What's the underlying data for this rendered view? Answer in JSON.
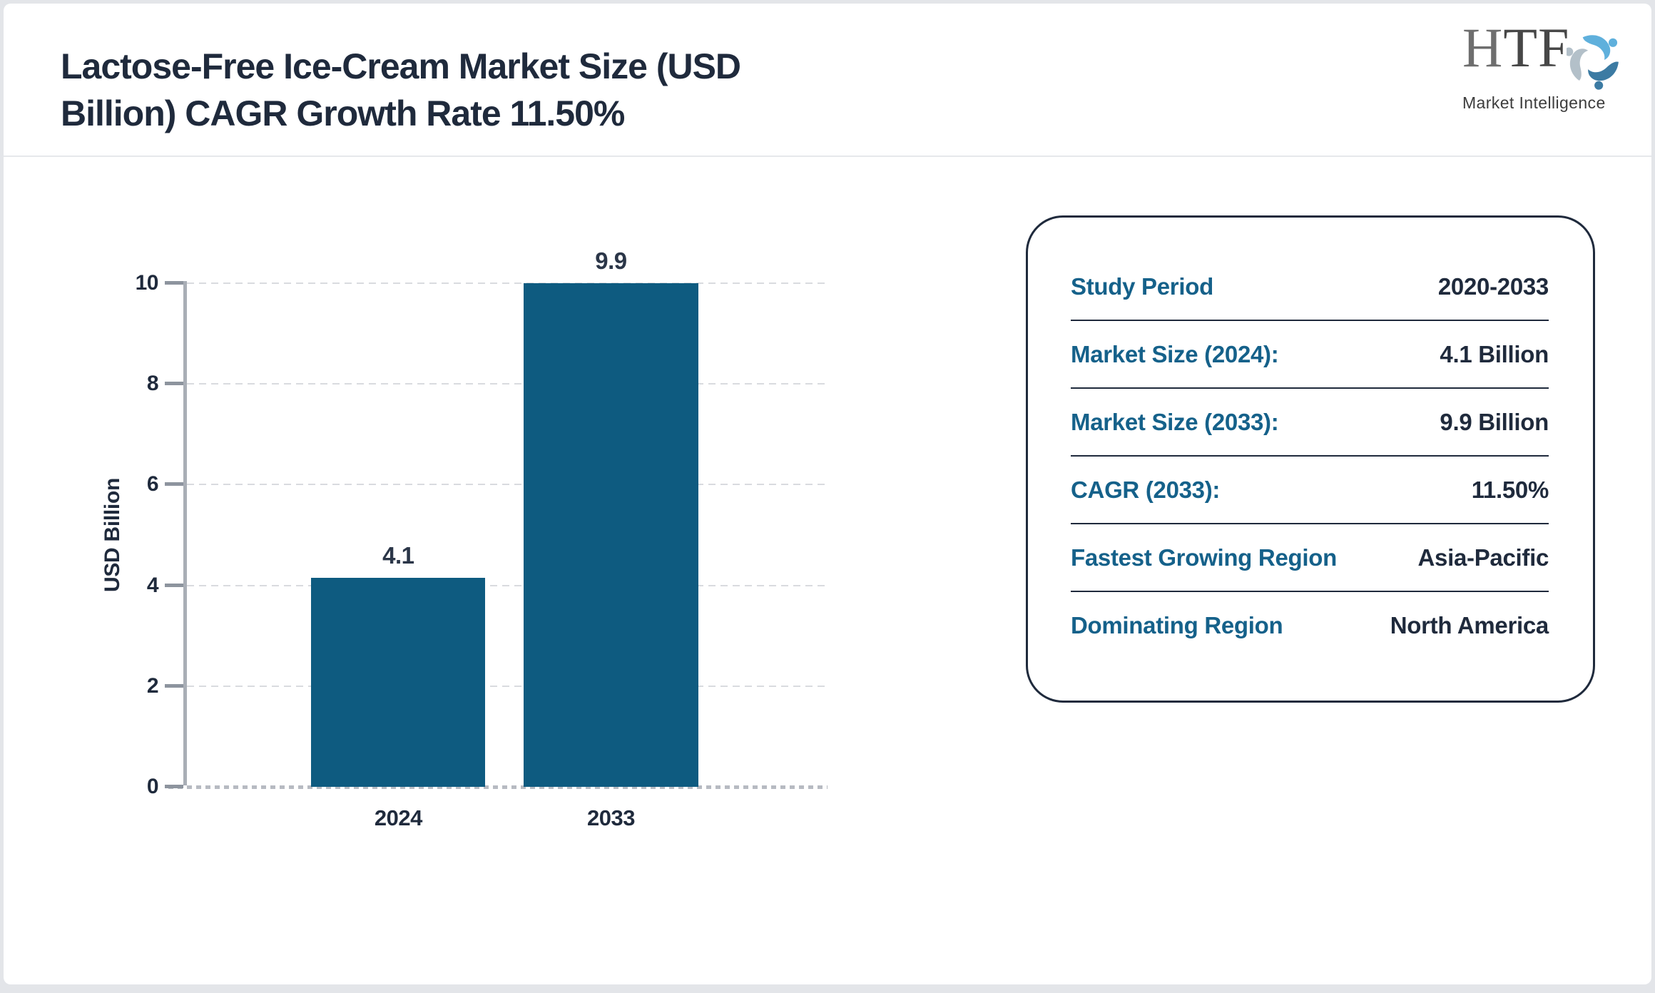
{
  "header": {
    "title": "Lactose-Free Ice-Cream Market Size (USD\nBillion) CAGR Growth Rate 11.50%",
    "logo": {
      "acronym_part1": "H",
      "acronym_part2": "TF",
      "subtitle": "Market Intelligence"
    }
  },
  "chart_data": {
    "type": "bar",
    "title": "",
    "categories": [
      "2024",
      "2033"
    ],
    "values": [
      4.1,
      9.9
    ],
    "bar_labels": [
      "4.1",
      "9.9"
    ],
    "xlabel": "",
    "ylabel": "USD Billion",
    "ylim": [
      0,
      10
    ],
    "yticks": [
      0,
      2,
      4,
      6,
      8,
      10
    ],
    "grid": "horizontal-dashed",
    "legend": "none",
    "bar_color": "#0e5b80",
    "layout": {
      "bar_centers_pct": [
        33,
        66.2
      ],
      "bar_width_pct": 27.2,
      "bar_height_pct": [
        41.5,
        100
      ]
    }
  },
  "info_card": {
    "rows": [
      {
        "label": "Study Period",
        "value": "2020-2033"
      },
      {
        "label": "Market Size (2024):",
        "value": "4.1 Billion"
      },
      {
        "label": "Market Size (2033):",
        "value": "9.9 Billion"
      },
      {
        "label": "CAGR (2033):",
        "value": "11.50%"
      },
      {
        "label": "Fastest Growing Region",
        "value": "Asia-Pacific"
      },
      {
        "label": "Dominating Region",
        "value": "North America"
      }
    ]
  },
  "colors": {
    "accent_teal": "#15618a",
    "navy_text": "#1f2a3c",
    "bar": "#0e5b80",
    "page_background": "#e3e5e9"
  }
}
